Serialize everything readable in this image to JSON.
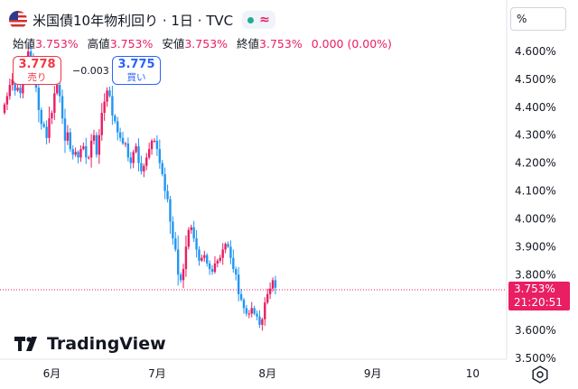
{
  "header": {
    "title": "米国債10年物利回り · 1日 · TVC",
    "status_icon": "market-open-dot",
    "wave_label": "≈"
  },
  "ohlc": {
    "open_label": "始値",
    "open": "3.753%",
    "high_label": "高値",
    "high": "3.753%",
    "low_label": "安値",
    "low": "3.753%",
    "close_label": "終値",
    "close": "3.753%",
    "change": "0.000 (0.00%)"
  },
  "trade": {
    "sell_price": "3.778",
    "sell_label": "売り",
    "spread": "−0.003",
    "buy_price": "3.775",
    "buy_label": "買い"
  },
  "axis_unit": "%",
  "last_price": {
    "value": "3.753%",
    "countdown": "21:20:51"
  },
  "logo_text": "TradingView",
  "colors": {
    "up": "#e91e63",
    "down": "#2196f3",
    "accent": "#e91e63"
  },
  "chart_data": {
    "type": "candlestick",
    "title": "米国債10年物利回り · 1日 · TVC",
    "ylabel": "%",
    "ylim": [
      3.5,
      4.7
    ],
    "y_ticks": [
      "4.600%",
      "4.500%",
      "4.400%",
      "4.300%",
      "4.200%",
      "4.100%",
      "4.000%",
      "3.900%",
      "3.800%",
      "3.700%",
      "3.600%",
      "3.500%"
    ],
    "x_ticks": [
      "6月",
      "7月",
      "8月",
      "9月",
      "10"
    ],
    "x_tick_index": [
      18,
      58,
      100,
      140,
      178
    ],
    "grid": false,
    "last_value": 3.753,
    "close": [
      4.41,
      4.44,
      4.48,
      4.5,
      4.46,
      4.47,
      4.45,
      4.52,
      4.55,
      4.6,
      4.58,
      4.53,
      4.47,
      4.39,
      4.34,
      4.33,
      4.29,
      4.36,
      4.38,
      4.45,
      4.48,
      4.44,
      4.36,
      4.28,
      4.31,
      4.25,
      4.23,
      4.24,
      4.22,
      4.25,
      4.26,
      4.22,
      4.22,
      4.28,
      4.3,
      4.23,
      4.3,
      4.38,
      4.42,
      4.46,
      4.44,
      4.37,
      4.35,
      4.31,
      4.29,
      4.27,
      4.27,
      4.22,
      4.2,
      4.24,
      4.26,
      4.2,
      4.17,
      4.19,
      4.22,
      4.25,
      4.28,
      4.28,
      4.25,
      4.2,
      4.16,
      4.1,
      4.07,
      3.99,
      3.93,
      3.89,
      3.8,
      3.78,
      3.82,
      3.9,
      3.96,
      3.97,
      3.93,
      3.89,
      3.85,
      3.86,
      3.87,
      3.84,
      3.82,
      3.81,
      3.84,
      3.85,
      3.86,
      3.89,
      3.91,
      3.9,
      3.86,
      3.82,
      3.8,
      3.73,
      3.71,
      3.68,
      3.66,
      3.66,
      3.68,
      3.66,
      3.65,
      3.62,
      3.64,
      3.7,
      3.73,
      3.75,
      3.78,
      3.753
    ]
  }
}
